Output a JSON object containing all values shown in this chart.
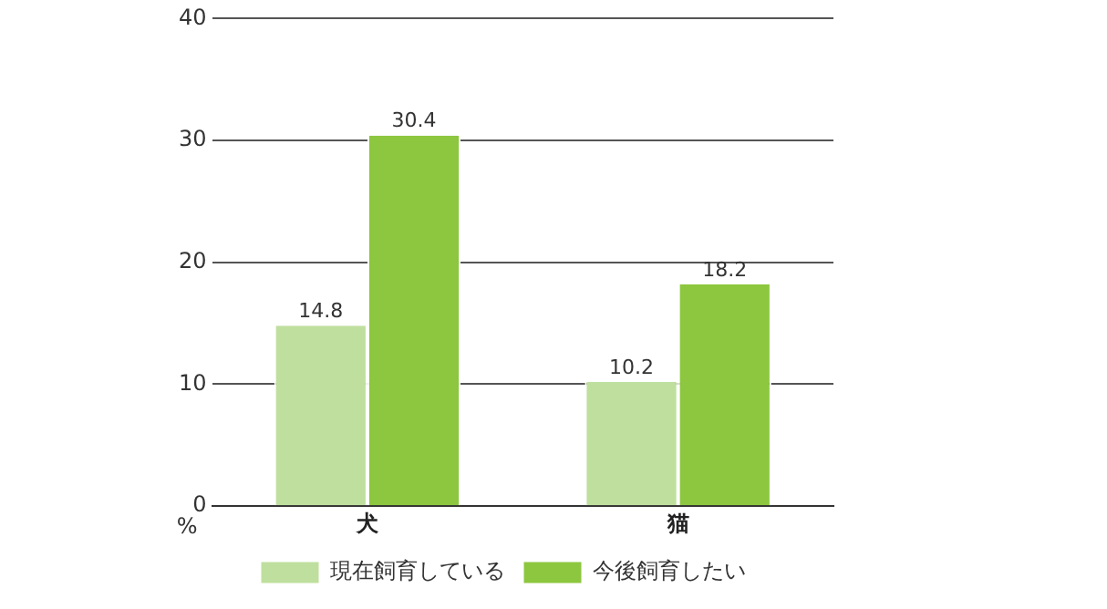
{
  "chart_data": {
    "type": "bar",
    "ylabel": "%",
    "categories": [
      "犬",
      "猫"
    ],
    "series": [
      {
        "name": "現在飼育している",
        "color": "#bfdf9e",
        "values": [
          14.8,
          10.2
        ]
      },
      {
        "name": "今後飼育したい",
        "color": "#8dc63f",
        "values": [
          30.4,
          18.2
        ]
      }
    ],
    "ylim": [
      0,
      40
    ],
    "yticks": [
      0,
      10,
      20,
      30,
      40
    ],
    "grid": "y",
    "legend": "bottom",
    "data_labels": true
  }
}
